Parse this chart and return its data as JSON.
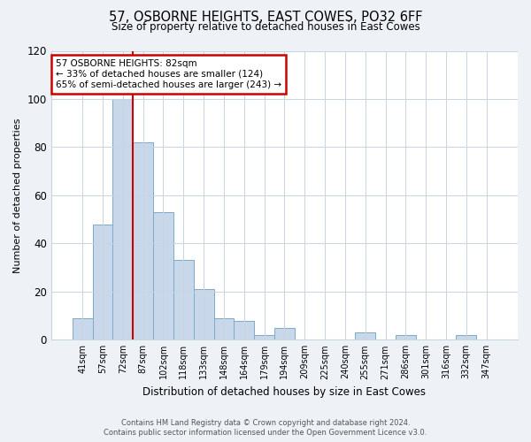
{
  "title": "57, OSBORNE HEIGHTS, EAST COWES, PO32 6FF",
  "subtitle": "Size of property relative to detached houses in East Cowes",
  "xlabel": "Distribution of detached houses by size in East Cowes",
  "ylabel": "Number of detached properties",
  "footer_line1": "Contains HM Land Registry data © Crown copyright and database right 2024.",
  "footer_line2": "Contains public sector information licensed under the Open Government Licence v3.0.",
  "bar_labels": [
    "41sqm",
    "57sqm",
    "72sqm",
    "87sqm",
    "102sqm",
    "118sqm",
    "133sqm",
    "148sqm",
    "164sqm",
    "179sqm",
    "194sqm",
    "209sqm",
    "225sqm",
    "240sqm",
    "255sqm",
    "271sqm",
    "286sqm",
    "301sqm",
    "316sqm",
    "332sqm",
    "347sqm"
  ],
  "bar_heights": [
    9,
    48,
    100,
    82,
    53,
    33,
    21,
    9,
    8,
    2,
    5,
    0,
    0,
    0,
    3,
    0,
    2,
    0,
    0,
    2,
    0
  ],
  "bar_color": "#c8d8ea",
  "bar_edge_color": "#7aacc8",
  "ylim": [
    0,
    120
  ],
  "yticks": [
    0,
    20,
    40,
    60,
    80,
    100,
    120
  ],
  "annotation_line1": "57 OSBORNE HEIGHTS: 82sqm",
  "annotation_line2": "← 33% of detached houses are smaller (124)",
  "annotation_line3": "65% of semi-detached houses are larger (243) →",
  "annotation_box_color": "#ffffff",
  "annotation_border_color": "#cc0000",
  "marker_line_color": "#cc0000",
  "background_color": "#eef2f7",
  "plot_background_color": "#ffffff",
  "grid_color": "#c8d4e0"
}
